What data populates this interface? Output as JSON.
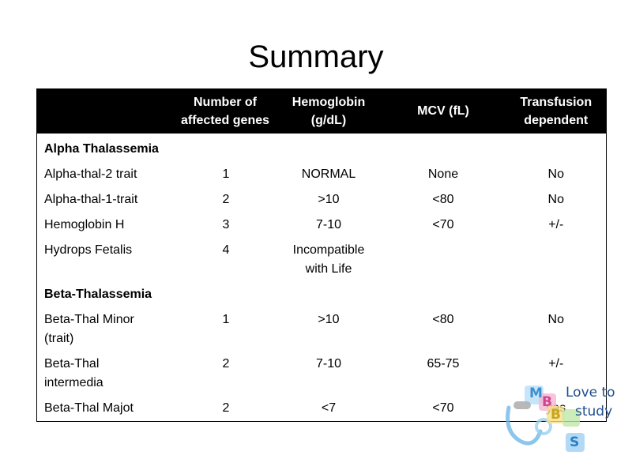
{
  "title": "Summary",
  "table": {
    "headers": [
      "",
      "Number of affected genes",
      "Hemoglobin (g/dL)",
      "MCV (fL)",
      "Transfusion dependent"
    ],
    "sections": [
      {
        "name": "Alpha Thalassemia",
        "rows": [
          [
            "Alpha-thal-2 trait",
            "1",
            "NORMAL",
            "None",
            "No"
          ],
          [
            "Alpha-thal-1-trait",
            "2",
            ">10",
            "<80",
            "No"
          ],
          [
            "Hemoglobin H",
            "3",
            "7-10",
            "<70",
            "+/-"
          ],
          [
            "Hydrops Fetalis",
            "4",
            "Incompatible with Life",
            "",
            ""
          ]
        ]
      },
      {
        "name": "Beta-Thalassemia",
        "rows": [
          [
            "Beta-Thal Minor (trait)",
            "1",
            ">10",
            "<80",
            "No"
          ],
          [
            "Beta-Thal intermedia",
            "2",
            "7-10",
            "65-75",
            "+/-"
          ],
          [
            "Beta-Thal Majot",
            "2",
            "<7",
            "<70",
            "yes"
          ]
        ]
      }
    ]
  },
  "watermark": {
    "line1": "Love to",
    "line2": "study",
    "letters": [
      "M",
      "B",
      "B",
      "S"
    ]
  }
}
